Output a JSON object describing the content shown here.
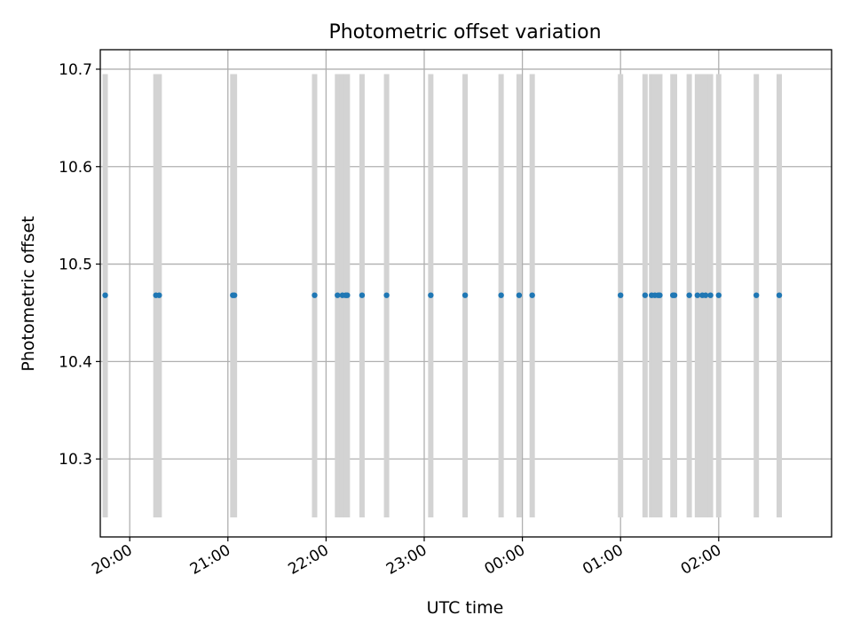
{
  "chart_data": {
    "type": "scatter",
    "title": "Photometric offset variation",
    "xlabel": "UTC time",
    "ylabel": "Photometric offset",
    "xlim": [
      "19:42",
      "03:09"
    ],
    "ylim": [
      10.22,
      10.72
    ],
    "x_ticks": [
      "20:00",
      "21:00",
      "22:00",
      "23:00",
      "00:00",
      "01:00",
      "02:00"
    ],
    "y_ticks": [
      10.3,
      10.4,
      10.5,
      10.6,
      10.7
    ],
    "grid": true,
    "x_tick_rotation": 30,
    "vertical_bands": {
      "color": "#d3d3d3",
      "y_range": [
        10.24,
        10.695
      ],
      "x": [
        "19:45",
        "20:16",
        "20:18",
        "21:03",
        "21:04",
        "21:53",
        "22:07",
        "22:10",
        "22:12",
        "22:13",
        "22:22",
        "22:37",
        "23:04",
        "23:25",
        "23:47",
        "23:58",
        "00:06",
        "01:00",
        "01:15",
        "01:19",
        "01:21",
        "01:23",
        "01:24",
        "01:32",
        "01:33",
        "01:42",
        "01:47",
        "01:50",
        "01:52",
        "01:55",
        "02:00",
        "02:23",
        "02:37"
      ]
    },
    "series": [
      {
        "color": "#1f77b4",
        "x": [
          "19:45",
          "20:16",
          "20:18",
          "21:03",
          "21:04",
          "21:53",
          "22:07",
          "22:10",
          "22:12",
          "22:13",
          "22:22",
          "22:37",
          "23:04",
          "23:25",
          "23:47",
          "23:58",
          "00:06",
          "01:00",
          "01:15",
          "01:19",
          "01:21",
          "01:23",
          "01:24",
          "01:32",
          "01:33",
          "01:42",
          "01:47",
          "01:50",
          "01:52",
          "01:55",
          "02:00",
          "02:23",
          "02:37"
        ],
        "y": [
          10.468,
          10.468,
          10.468,
          10.468,
          10.468,
          10.468,
          10.468,
          10.468,
          10.468,
          10.468,
          10.468,
          10.468,
          10.468,
          10.468,
          10.468,
          10.468,
          10.468,
          10.468,
          10.468,
          10.468,
          10.468,
          10.468,
          10.468,
          10.468,
          10.468,
          10.468,
          10.468,
          10.468,
          10.468,
          10.468,
          10.468,
          10.468,
          10.468
        ]
      }
    ]
  }
}
